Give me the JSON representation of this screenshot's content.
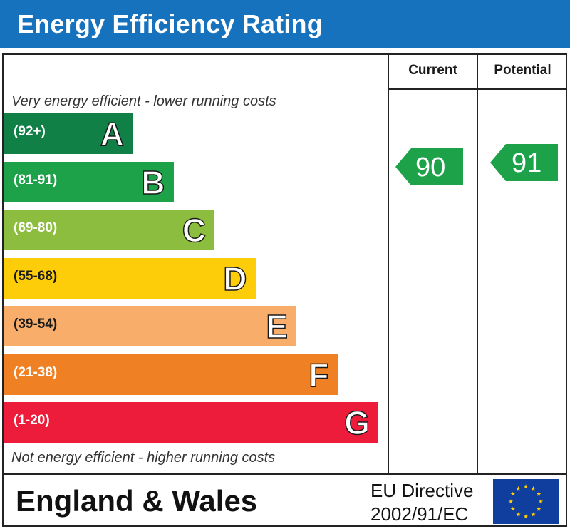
{
  "header": {
    "title": "Energy Efficiency Rating"
  },
  "columns": {
    "current": "Current",
    "potential": "Potential"
  },
  "captions": {
    "top": "Very energy efficient - lower running costs",
    "bottom": "Not energy efficient - higher running costs"
  },
  "chart_data": {
    "type": "bar",
    "title": "Energy Efficiency Rating",
    "categories": [
      "A",
      "B",
      "C",
      "D",
      "E",
      "F",
      "G"
    ],
    "ranges": [
      "(92+)",
      "(81-91)",
      "(69-80)",
      "(55-68)",
      "(39-54)",
      "(21-38)",
      "(1-20)"
    ],
    "colors": [
      "#118047",
      "#1da24a",
      "#8cbd3f",
      "#fecd0a",
      "#f8ad6a",
      "#f08024",
      "#ec1c3a"
    ],
    "current": {
      "label": "Current",
      "value": 90,
      "band": "B"
    },
    "potential": {
      "label": "Potential",
      "value": 91,
      "band": "B"
    },
    "arrow_color": "#1da24a"
  },
  "footer": {
    "region": "England & Wales",
    "directive_line1": "EU Directive",
    "directive_line2": "2002/91/EC",
    "flag_colors": {
      "field": "#0f3e9e",
      "stars": "#ffcc00"
    }
  }
}
